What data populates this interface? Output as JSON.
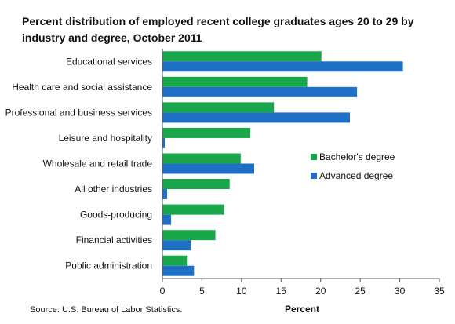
{
  "chart_data": {
    "type": "bar",
    "orientation": "horizontal",
    "title_lines": [
      "Percent distribution of employed recent college graduates ages 20 to 29 by",
      "industry and degree, October 2011"
    ],
    "categories": [
      "Educational services",
      "Health care and social assistance",
      "Professional and business services",
      "Leisure and hospitality",
      "Wholesale and retail trade",
      "All other industries",
      "Goods-producing",
      "Financial activities",
      "Public administration"
    ],
    "series": [
      {
        "name": "Bachelor's degree",
        "color": "#1aa64a",
        "values": [
          20.1,
          18.3,
          14.1,
          11.1,
          9.9,
          8.5,
          7.8,
          6.7,
          3.2
        ]
      },
      {
        "name": "Advanced degree",
        "color": "#1f6fc5",
        "values": [
          30.4,
          24.6,
          23.7,
          0.3,
          11.6,
          0.6,
          1.1,
          3.6,
          4.0
        ]
      }
    ],
    "xlabel": "Percent",
    "xlim": [
      0,
      35
    ],
    "xticks": [
      0,
      5,
      10,
      15,
      20,
      25,
      30,
      35
    ],
    "grid": false,
    "legend_position": "right"
  },
  "source": "Source: U.S. Bureau of Labor Statistics."
}
